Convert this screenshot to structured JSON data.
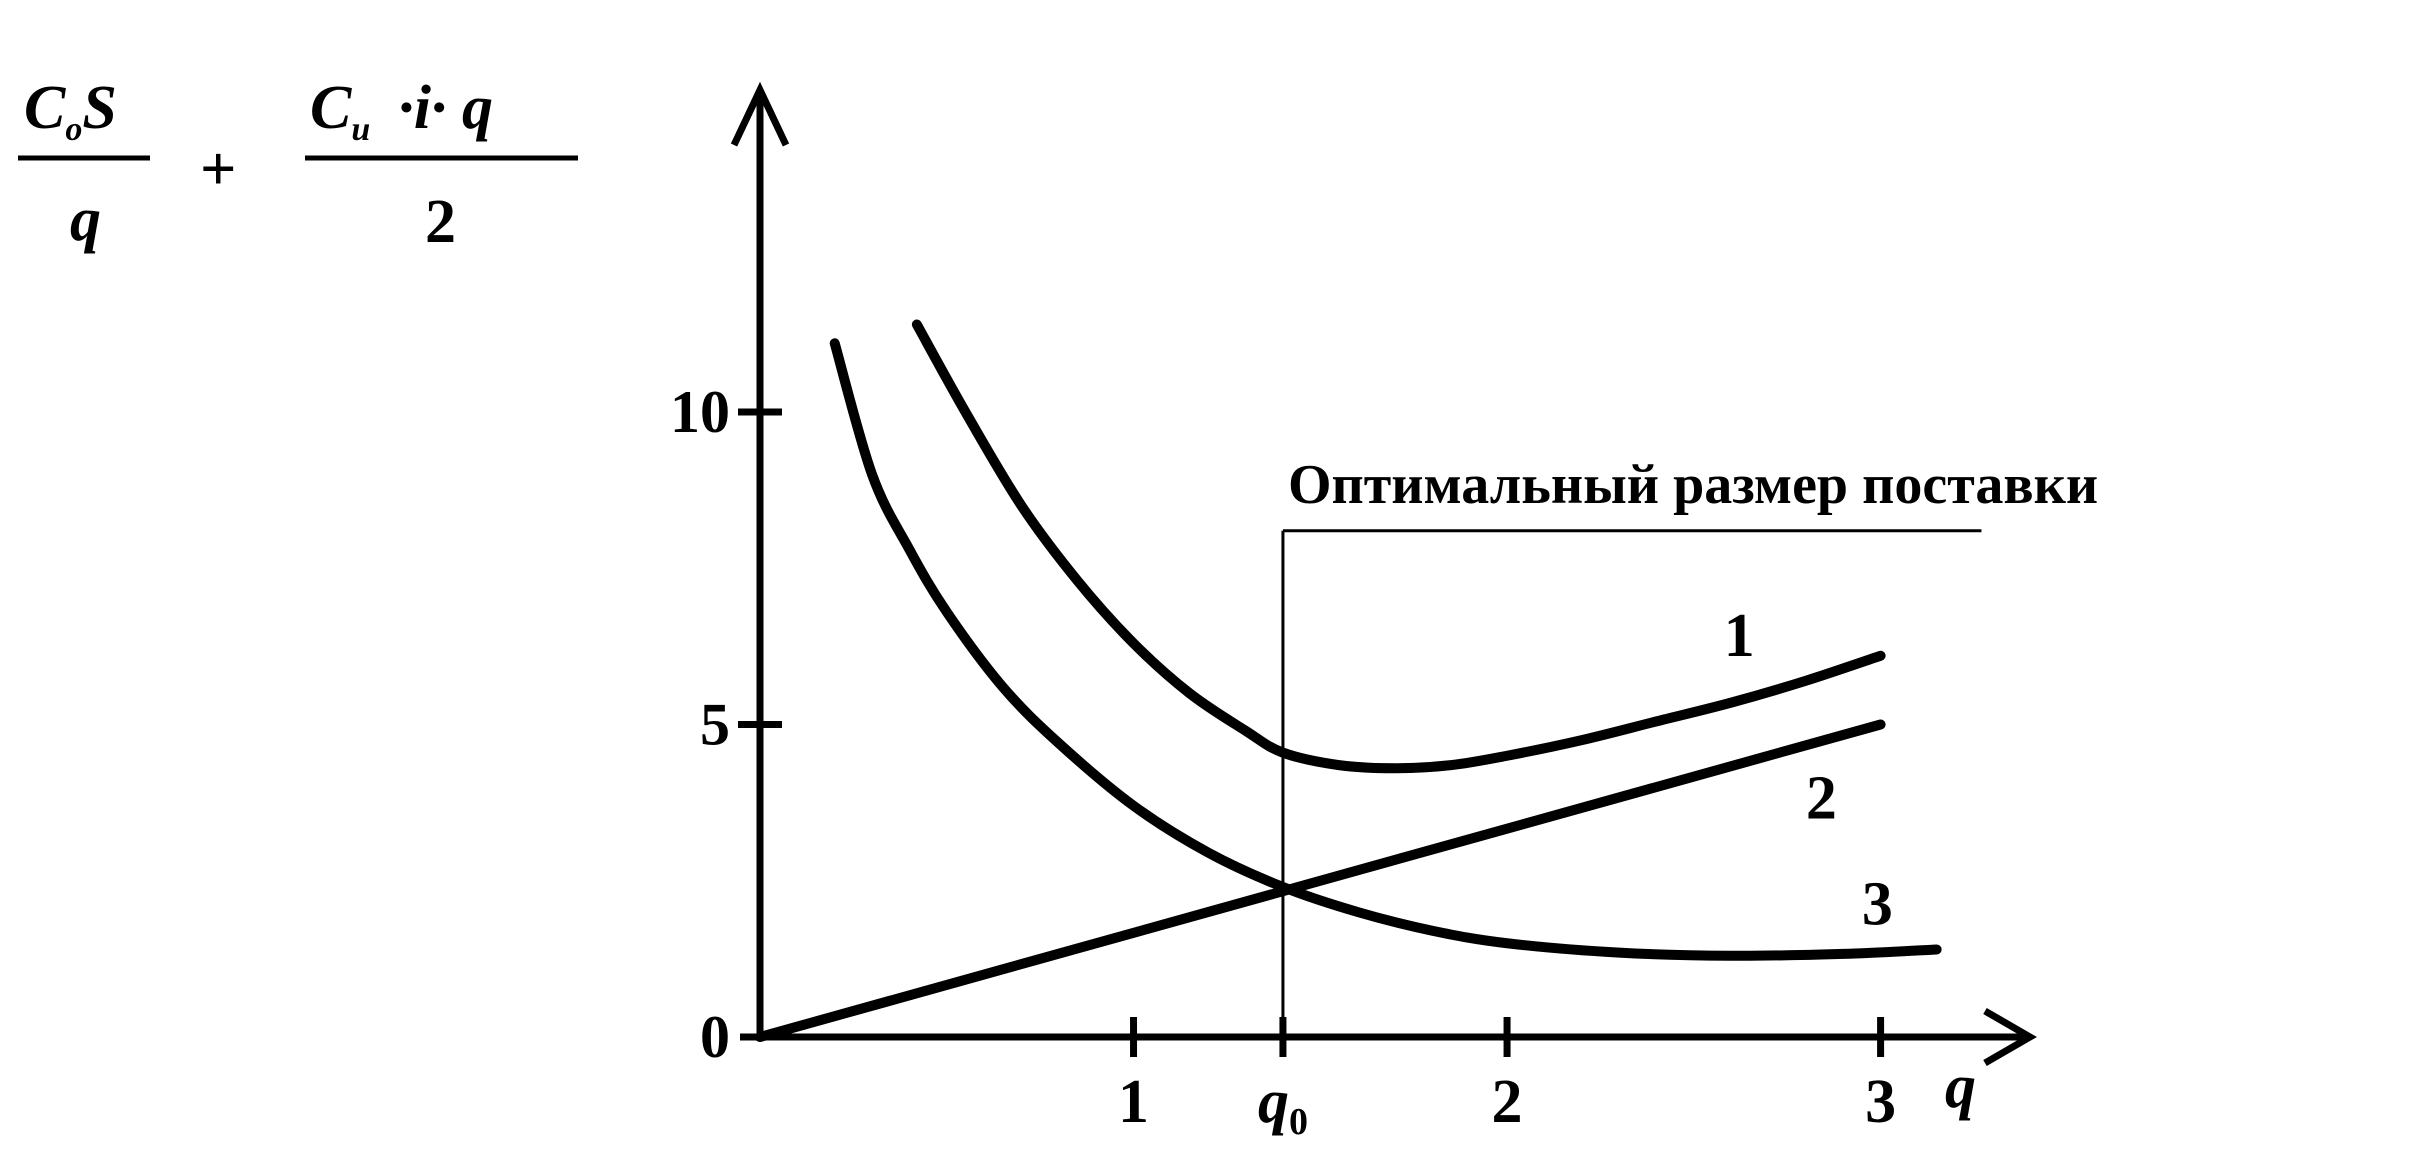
{
  "formula": {
    "term1_numerator": "C",
    "term1_numerator_sub": "o",
    "term1_numerator_tail": "S",
    "term1_denominator": "q",
    "plus": "+",
    "term2_numerator": "C",
    "term2_numerator_sub": "u",
    "term2_numerator_tail": "·i· q",
    "term2_denominator": "2"
  },
  "chart_data": {
    "type": "line",
    "title": "",
    "xlabel": "q",
    "ylabel": "",
    "xlim": [
      0,
      3.4
    ],
    "ylim": [
      0,
      12.5
    ],
    "x_ticks": [
      {
        "value": 1,
        "label": "1"
      },
      {
        "value": 1.4,
        "label": "q",
        "sub": "0"
      },
      {
        "value": 2,
        "label": "2"
      },
      {
        "value": 3,
        "label": "3"
      }
    ],
    "y_ticks": [
      {
        "value": 0,
        "label": "0"
      },
      {
        "value": 5,
        "label": "5"
      },
      {
        "value": 10,
        "label": "10"
      }
    ],
    "optimal_q": 1.4,
    "annotation": {
      "text": "Оптимальный размер поставки",
      "level": 8.1,
      "x_end": 3.27
    },
    "series": [
      {
        "label": "1",
        "label_pos": [
          2.58,
          6.1
        ],
        "x": [
          0.42,
          0.55,
          0.7,
          0.85,
          1.0,
          1.15,
          1.3,
          1.4,
          1.55,
          1.7,
          1.85,
          2.0,
          2.2,
          2.4,
          2.6,
          2.8,
          3.0
        ],
        "y": [
          11.4,
          10.0,
          8.5,
          7.3,
          6.3,
          5.5,
          4.9,
          4.55,
          4.35,
          4.3,
          4.35,
          4.5,
          4.75,
          5.05,
          5.35,
          5.7,
          6.1
        ]
      },
      {
        "label": "2",
        "label_pos": [
          2.8,
          3.5
        ],
        "x": [
          0,
          3.0
        ],
        "y": [
          0,
          5.0
        ]
      },
      {
        "label": "3",
        "label_pos": [
          2.95,
          1.8
        ],
        "x": [
          0.2,
          0.3,
          0.4,
          0.5,
          0.65,
          0.8,
          1.0,
          1.2,
          1.4,
          1.6,
          1.8,
          2.0,
          2.3,
          2.6,
          2.9,
          3.15
        ],
        "y": [
          11.1,
          9.0,
          7.8,
          6.8,
          5.6,
          4.7,
          3.7,
          2.95,
          2.4,
          2.0,
          1.7,
          1.5,
          1.35,
          1.3,
          1.33,
          1.4
        ]
      }
    ]
  }
}
